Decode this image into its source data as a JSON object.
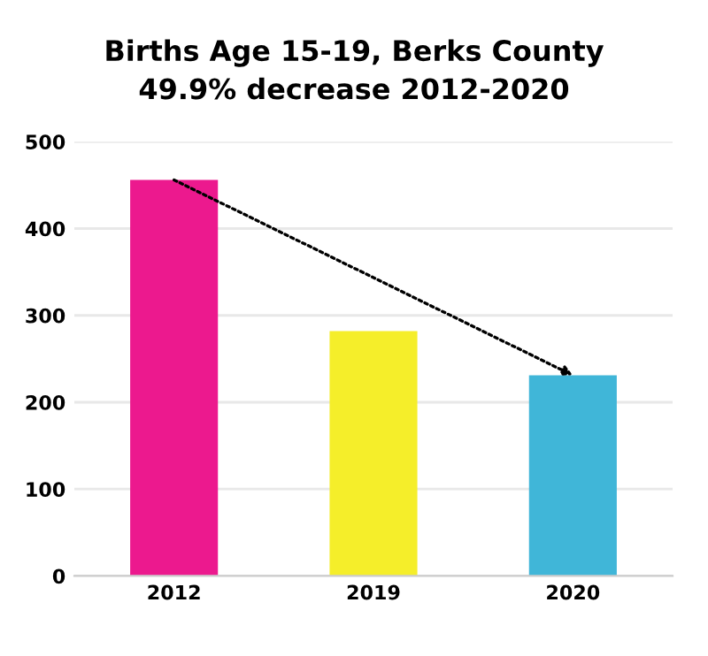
{
  "chart_data": {
    "type": "bar",
    "title": "Births Age 15-19, Berks County\n49.9% decrease 2012-2020",
    "categories": [
      "2012",
      "2019",
      "2020"
    ],
    "values": [
      456,
      282,
      231
    ],
    "colors": [
      "#ec198e",
      "#f5ee2a",
      "#40b6d8"
    ],
    "ylim": [
      0,
      500
    ],
    "yticks": [
      0,
      100,
      200,
      300,
      400,
      500
    ],
    "grid": "y"
  }
}
